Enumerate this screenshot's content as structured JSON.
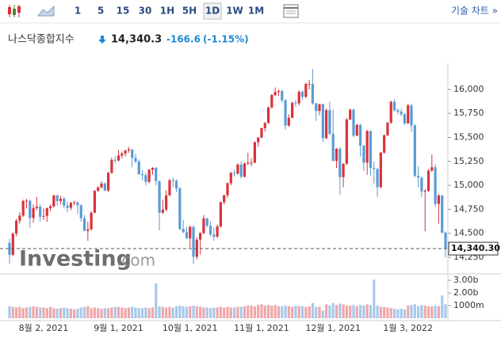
{
  "toolbar": {
    "intervals": [
      "1",
      "5",
      "15",
      "30",
      "1H",
      "5H",
      "1D",
      "1W",
      "1M"
    ],
    "selected": "1D",
    "chart_menu": "기술 차트 »"
  },
  "quote": {
    "name": "나스닥종합지수",
    "price": "14,340.3",
    "change": "-166.6",
    "change_pct": "(-1.15%)"
  },
  "watermark": {
    "brand": "Investing",
    "suffix": ".com"
  },
  "chart_data": {
    "type": "candlestick",
    "up_color": "#d9323b",
    "down_color": "#5b9bd5",
    "volume_up_color": "#f0a7aa",
    "volume_down_color": "#a8c8ea",
    "categories": [
      null,
      null,
      null,
      null,
      null,
      null,
      null,
      null,
      null,
      null,
      "8월 2, 2021",
      null,
      null,
      null,
      null,
      null,
      null,
      null,
      null,
      null,
      null,
      null,
      null,
      null,
      null,
      null,
      null,
      null,
      null,
      null,
      null,
      null,
      "9월 1, 2021",
      null,
      null,
      null,
      null,
      null,
      null,
      null,
      null,
      null,
      null,
      null,
      null,
      null,
      null,
      null,
      null,
      null,
      null,
      null,
      null,
      "10월 1, 2021",
      null,
      null,
      null,
      null,
      null,
      null,
      null,
      null,
      null,
      null,
      null,
      null,
      null,
      null,
      null,
      null,
      null,
      null,
      null,
      null,
      "11월 1, 2021",
      null,
      null,
      null,
      null,
      null,
      null,
      null,
      null,
      null,
      null,
      null,
      null,
      null,
      null,
      null,
      null,
      null,
      null,
      null,
      null,
      "12월 1, 2021",
      null,
      null,
      null,
      null,
      null,
      null,
      null,
      null,
      null,
      null,
      null,
      null,
      null,
      null,
      null,
      null,
      null,
      null,
      null,
      null,
      null,
      "1월 3, 2022",
      null,
      null,
      null,
      null,
      null,
      null,
      null,
      null,
      null,
      null,
      null
    ],
    "open": [
      14400,
      14275,
      14498,
      14631,
      14684,
      14840,
      14840,
      14660,
      14763,
      14778,
      14673,
      14681,
      14761,
      14780,
      14895,
      14836,
      14860,
      14788,
      14765,
      14816,
      14823,
      14793,
      14657,
      14526,
      14542,
      14714,
      14943,
      14978,
      15019,
      14946,
      15130,
      15266,
      15259,
      15310,
      15331,
      15363,
      15374,
      15287,
      15248,
      15115,
      15105,
      15037,
      15162,
      15182,
      15044,
      14714,
      14747,
      14896,
      15052,
      15048,
      14970,
      14546,
      14512,
      14448,
      14567,
      14255,
      14434,
      14502,
      14655,
      14580,
      14486,
      14465,
      14572,
      14824,
      14897,
      15022,
      15130,
      15122,
      15216,
      15090,
      15227,
      15236,
      15236,
      15449,
      15498,
      15596,
      15650,
      15812,
      15941,
      15972,
      15982,
      15886,
      15623,
      15704,
      15861,
      15854,
      15974,
      15922,
      16057,
      16058,
      15854,
      15775,
      15846,
      15492,
      15783,
      15538,
      15254,
      15381,
      15085,
      15225,
      15686,
      15787,
      15518,
      15630,
      15413,
      15237,
      15566,
      15181,
      15170,
      14981,
      15341,
      15522,
      15653,
      15871,
      15782,
      15767,
      15741,
      15645,
      15833,
      15623,
      15100,
      15081,
      14936,
      14943,
      15153,
      15188,
      14806,
      14894,
      14507
    ],
    "high": [
      14440,
      14510,
      14650,
      14720,
      14850,
      14860,
      14850,
      14800,
      14880,
      14800,
      14760,
      14770,
      14800,
      14900,
      14905,
      14890,
      14880,
      14830,
      14830,
      14840,
      14830,
      14800,
      14690,
      14620,
      14730,
      14950,
      14990,
      15040,
      15030,
      15140,
      15290,
      15300,
      15370,
      15350,
      15370,
      15400,
      15380,
      15330,
      15270,
      15160,
      15130,
      15170,
      15190,
      15190,
      15050,
      14850,
      14950,
      15070,
      15080,
      15060,
      14980,
      14640,
      14570,
      14580,
      14580,
      14460,
      14510,
      14690,
      14660,
      14620,
      14560,
      14590,
      14830,
      14900,
      15030,
      15140,
      15160,
      15230,
      15250,
      15240,
      15340,
      15280,
      15460,
      15500,
      15600,
      15660,
      15820,
      15950,
      16020,
      16000,
      16000,
      15900,
      15740,
      15870,
      15890,
      15990,
      15990,
      16070,
      16100,
      16212,
      15860,
      15850,
      15850,
      15800,
      15870,
      15790,
      15390,
      15400,
      15230,
      15700,
      15800,
      15800,
      15640,
      15640,
      15420,
      15580,
      15570,
      15250,
      15180,
      15350,
      15530,
      15660,
      15880,
      15900,
      15800,
      15800,
      15750,
      15850,
      15850,
      15640,
      15200,
      15090,
      14960,
      15170,
      15320,
      15220,
      14910,
      14900,
      14520
    ],
    "low": [
      14180,
      14260,
      14470,
      14600,
      14670,
      14760,
      14560,
      14610,
      14740,
      14620,
      14640,
      14620,
      14730,
      14770,
      14790,
      14800,
      14760,
      14720,
      14740,
      14790,
      14700,
      14620,
      14520,
      14420,
      14530,
      14710,
      14930,
      14970,
      14940,
      14930,
      15120,
      15230,
      15250,
      15280,
      15300,
      15340,
      15190,
      15230,
      15110,
      15050,
      15000,
      15020,
      15110,
      15000,
      14530,
      14700,
      14730,
      14890,
      14980,
      14930,
      14530,
      14500,
      14440,
      14350,
      14180,
      14230,
      14280,
      14490,
      14560,
      14470,
      14420,
      14450,
      14560,
      14800,
      14870,
      15000,
      15090,
      15110,
      15070,
      15080,
      15210,
      15200,
      15230,
      15400,
      15490,
      15560,
      15640,
      15800,
      15930,
      15930,
      15860,
      15580,
      15610,
      15700,
      15820,
      15830,
      15890,
      15910,
      16000,
      15840,
      15670,
      15730,
      15450,
      15480,
      15520,
      15250,
      15180,
      14900,
      14980,
      15210,
      15680,
      15500,
      15510,
      15300,
      15150,
      15110,
      15100,
      15020,
      14880,
      14970,
      15330,
      15510,
      15640,
      15770,
      15740,
      15720,
      15630,
      15640,
      15560,
      15080,
      14980,
      14880,
      14520,
      14930,
      15140,
      14780,
      14600,
      14500,
      14250
    ],
    "close": [
      14275,
      14498,
      14631,
      14684,
      14837,
      14840,
      14660,
      14763,
      14778,
      14673,
      14681,
      14761,
      14780,
      14895,
      14836,
      14860,
      14788,
      14765,
      14816,
      14823,
      14793,
      14657,
      14526,
      14542,
      14714,
      14943,
      14978,
      15019,
      14946,
      15130,
      15266,
      15259,
      15310,
      15331,
      15363,
      15374,
      15287,
      15248,
      15115,
      15105,
      15037,
      15162,
      15182,
      15044,
      14714,
      14747,
      14896,
      15052,
      15048,
      14970,
      14546,
      14512,
      14448,
      14567,
      14255,
      14434,
      14502,
      14655,
      14580,
      14486,
      14465,
      14572,
      14824,
      14897,
      15022,
      15130,
      15122,
      15216,
      15090,
      15227,
      15236,
      15236,
      15449,
      15498,
      15596,
      15650,
      15812,
      15941,
      15972,
      15982,
      15886,
      15623,
      15704,
      15861,
      15854,
      15974,
      15922,
      16057,
      16058,
      15854,
      15775,
      15846,
      15492,
      15783,
      15538,
      15254,
      15381,
      15085,
      15225,
      15686,
      15787,
      15518,
      15630,
      15413,
      15237,
      15566,
      15181,
      15170,
      14981,
      15341,
      15522,
      15653,
      15871,
      15782,
      15767,
      15741,
      15645,
      15833,
      15623,
      15100,
      15081,
      14936,
      14943,
      15153,
      15188,
      14806,
      14894,
      14507,
      14340.3
    ],
    "volume": [
      0.95,
      0.9,
      0.85,
      0.9,
      0.8,
      0.85,
      0.9,
      0.95,
      0.9,
      0.85,
      0.85,
      0.8,
      0.9,
      0.8,
      0.75,
      0.8,
      0.85,
      0.8,
      0.75,
      0.7,
      0.75,
      0.85,
      0.9,
      0.95,
      0.8,
      0.85,
      0.8,
      0.75,
      0.8,
      0.8,
      0.85,
      0.9,
      0.9,
      0.85,
      0.8,
      0.85,
      0.9,
      0.85,
      0.8,
      0.8,
      0.85,
      0.8,
      0.85,
      2.75,
      0.95,
      0.9,
      0.85,
      0.9,
      0.85,
      0.95,
      1.0,
      0.95,
      0.9,
      0.95,
      1.0,
      0.95,
      0.9,
      0.85,
      0.85,
      0.8,
      0.85,
      0.85,
      0.9,
      0.85,
      0.9,
      0.85,
      0.85,
      0.9,
      0.9,
      0.95,
      1.0,
      1.0,
      0.95,
      1.05,
      1.1,
      1.0,
      1.05,
      1.0,
      1.05,
      0.95,
      0.95,
      1.0,
      0.95,
      0.9,
      1.0,
      0.95,
      0.95,
      0.9,
      0.95,
      1.2,
      0.9,
      0.9,
      0.6,
      1.1,
      1.0,
      1.2,
      1.05,
      1.15,
      1.1,
      1.0,
      1.0,
      1.05,
      0.95,
      1.05,
      1.0,
      1.1,
      1.05,
      3.05,
      1.0,
      0.9,
      0.9,
      0.85,
      0.8,
      0.75,
      0.7,
      0.75,
      0.7,
      1.0,
      1.05,
      1.1,
      0.95,
      1.05,
      1.0,
      0.95,
      0.95,
      1.0,
      0.95,
      1.8,
      1.1
    ],
    "ylim": [
      14085,
      16230
    ],
    "yticks": [
      {
        "value": 14250,
        "label": "14,250"
      },
      {
        "value": 14500,
        "label": "14,500"
      },
      {
        "value": 14750,
        "label": "14,750"
      },
      {
        "value": 15000,
        "label": "15,000"
      },
      {
        "value": 15250,
        "label": "15,250"
      },
      {
        "value": 15500,
        "label": "15,500"
      },
      {
        "value": 15750,
        "label": "15,750"
      },
      {
        "value": 16000,
        "label": "16,000"
      }
    ],
    "last_price": {
      "value": 14340.3,
      "label": "14,340.30"
    },
    "y2lim": [
      0,
      3.375
    ],
    "y2ticks": [
      {
        "value": 3,
        "label": "3.00b"
      },
      {
        "value": 2,
        "label": "2.00b"
      },
      {
        "value": 1,
        "label": "1000m"
      }
    ]
  }
}
